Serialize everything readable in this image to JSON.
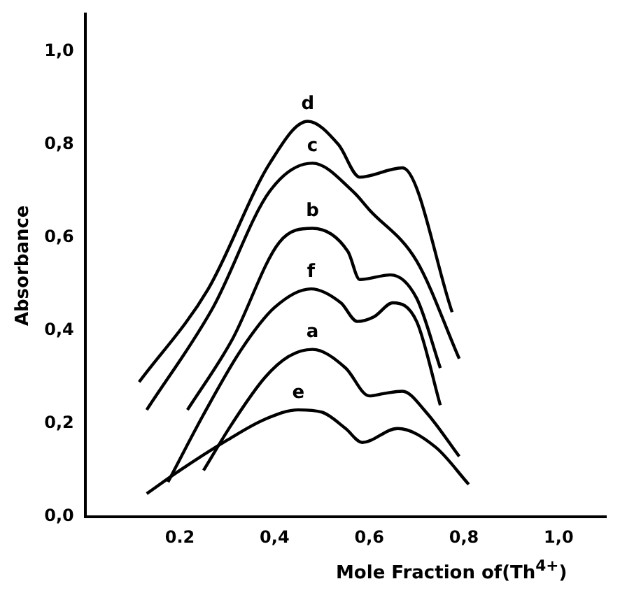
{
  "chart_data": {
    "type": "line",
    "xlabel": "Mole Fraction of(Th$^{4+}$)",
    "ylabel": "Absorbance",
    "xlim": [
      0,
      1.1
    ],
    "ylim": [
      0,
      1.08
    ],
    "xticks": [
      {
        "value": 0.2,
        "label": "0.2"
      },
      {
        "value": 0.4,
        "label": "0,4"
      },
      {
        "value": 0.6,
        "label": "0,6"
      },
      {
        "value": 0.8,
        "label": "0,8"
      },
      {
        "value": 1.0,
        "label": "1,0"
      }
    ],
    "yticks": [
      {
        "value": 0,
        "label": "0,0"
      },
      {
        "value": 0.2,
        "label": "0,2"
      },
      {
        "value": 0.4,
        "label": "0,4"
      },
      {
        "value": 0.6,
        "label": "0,6"
      },
      {
        "value": 0.8,
        "label": "0,8"
      },
      {
        "value": 1.0,
        "label": "1,0"
      }
    ],
    "grid": false,
    "legend": false,
    "marker": "none",
    "line_style": "solid",
    "series": [
      {
        "name": "d",
        "color": "#000000",
        "x": [
          0.114,
          0.26,
          0.39,
          0.47,
          0.535,
          0.58,
          0.67,
          0.775
        ],
        "values": [
          0.29,
          0.49,
          0.76,
          0.85,
          0.8,
          0.73,
          0.75,
          0.44
        ]
      },
      {
        "name": "c",
        "color": "#000000",
        "x": [
          0.13,
          0.27,
          0.39,
          0.48,
          0.565,
          0.6,
          0.7,
          0.79
        ],
        "values": [
          0.23,
          0.45,
          0.7,
          0.76,
          0.7,
          0.66,
          0.55,
          0.34
        ]
      },
      {
        "name": "b",
        "color": "#000000",
        "x": [
          0.216,
          0.31,
          0.41,
          0.48,
          0.555,
          0.58,
          0.645,
          0.7,
          0.75
        ],
        "values": [
          0.23,
          0.38,
          0.59,
          0.62,
          0.57,
          0.51,
          0.52,
          0.47,
          0.32
        ]
      },
      {
        "name": "f",
        "color": "#000000",
        "x": [
          0.175,
          0.25,
          0.33,
          0.4,
          0.477,
          0.54,
          0.575,
          0.61,
          0.65,
          0.7,
          0.75
        ],
        "values": [
          0.075,
          0.22,
          0.36,
          0.45,
          0.49,
          0.46,
          0.42,
          0.43,
          0.46,
          0.42,
          0.24
        ]
      },
      {
        "name": "a",
        "color": "#000000",
        "x": [
          0.25,
          0.31,
          0.38,
          0.43,
          0.48,
          0.55,
          0.6,
          0.63,
          0.67,
          0.72,
          0.79
        ],
        "values": [
          0.1,
          0.2,
          0.3,
          0.345,
          0.36,
          0.32,
          0.26,
          0.265,
          0.27,
          0.225,
          0.13
        ]
      },
      {
        "name": "e",
        "color": "#000000",
        "x": [
          0.13,
          0.2,
          0.3,
          0.38,
          0.45,
          0.5,
          0.55,
          0.585,
          0.66,
          0.74,
          0.81
        ],
        "values": [
          0.05,
          0.1,
          0.165,
          0.21,
          0.23,
          0.225,
          0.19,
          0.16,
          0.19,
          0.15,
          0.07
        ]
      }
    ]
  }
}
